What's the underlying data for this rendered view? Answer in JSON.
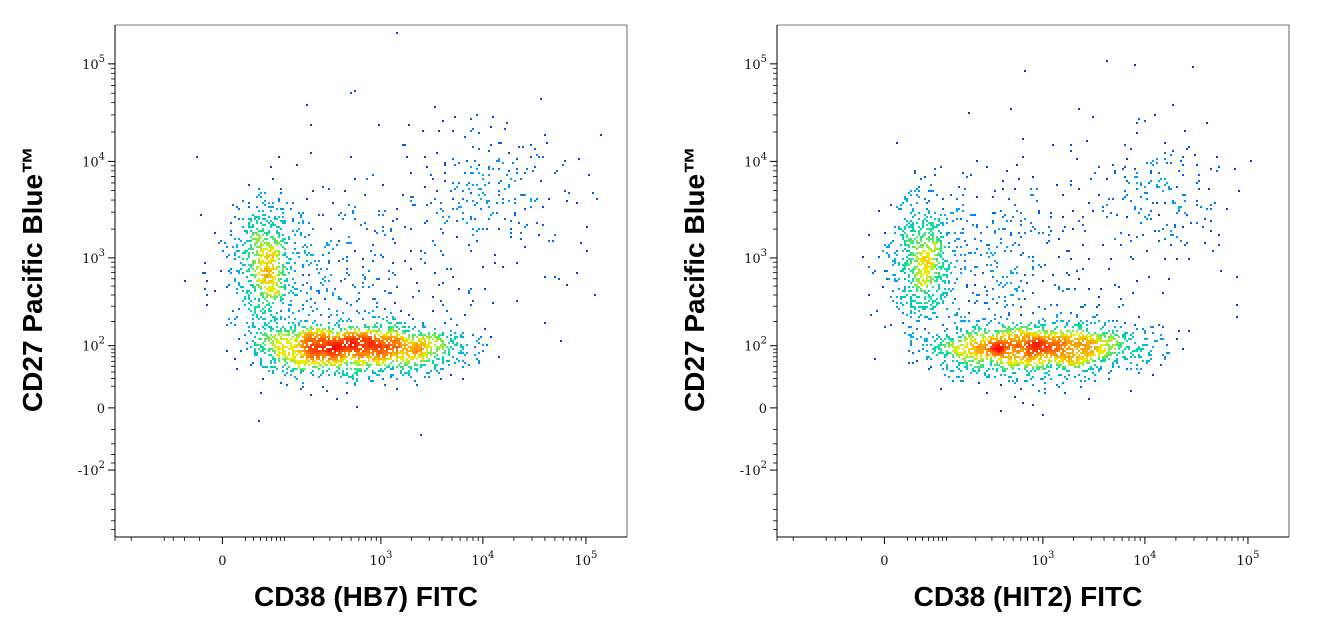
{
  "chart_data": [
    {
      "type": "scatter",
      "subtype": "flow-cytometry-density-dot-plot",
      "xlabel": "CD38 (HB7) FITC",
      "ylabel": "CD27 Pacific Blue™",
      "x_scale": "biexponential",
      "y_scale": "biexponential",
      "xlim": [
        -300,
        250000
      ],
      "ylim": [
        -600,
        250000
      ],
      "x_ticks": [
        {
          "value": 0,
          "label": "0"
        },
        {
          "value": 1000,
          "label": "10",
          "exp": "3"
        },
        {
          "value": 10000,
          "label": "10",
          "exp": "4"
        },
        {
          "value": 100000,
          "label": "10",
          "exp": "5"
        }
      ],
      "y_ticks": [
        {
          "value": -100,
          "label": "-10",
          "exp": "2"
        },
        {
          "value": 0,
          "label": "0"
        },
        {
          "value": 100,
          "label": "10",
          "exp": "2"
        },
        {
          "value": 1000,
          "label": "10",
          "exp": "3"
        },
        {
          "value": 10000,
          "label": "10",
          "exp": "4"
        },
        {
          "value": 100000,
          "label": "10",
          "exp": "5"
        }
      ],
      "colormap": [
        "#0000c8",
        "#00a0ff",
        "#00e0a0",
        "#f0f000",
        "#ff8000",
        "#ff0000"
      ],
      "populations": [
        {
          "x": 320,
          "y": 90,
          "sx": 0.45,
          "sy": 0.13,
          "n": 1400
        },
        {
          "x": 1500,
          "y": 95,
          "sx": 0.35,
          "sy": 0.13,
          "n": 700
        },
        {
          "x": 45,
          "y": 800,
          "sx": 0.18,
          "sy": 0.35,
          "n": 650
        },
        {
          "x": 200,
          "y": 600,
          "sx": 0.55,
          "sy": 0.45,
          "n": 350
        },
        {
          "x": 12000,
          "y": 5000,
          "sx": 0.35,
          "sy": 0.3,
          "n": 180
        },
        {
          "x": 3000,
          "y": 2000,
          "sx": 0.7,
          "sy": 0.7,
          "n": 150
        }
      ],
      "grid": false,
      "legend": "none"
    },
    {
      "type": "scatter",
      "subtype": "flow-cytometry-density-dot-plot",
      "xlabel": "CD38 (HIT2) FITC",
      "ylabel": "CD27 Pacific Blue™",
      "x_scale": "biexponential",
      "y_scale": "biexponential",
      "xlim": [
        -300,
        250000
      ],
      "ylim": [
        -600,
        250000
      ],
      "x_ticks": [
        {
          "value": 0,
          "label": "0"
        },
        {
          "value": 1000,
          "label": "10",
          "exp": "3"
        },
        {
          "value": 10000,
          "label": "10",
          "exp": "4"
        },
        {
          "value": 100000,
          "label": "10",
          "exp": "5"
        }
      ],
      "y_ticks": [
        {
          "value": -100,
          "label": "-10",
          "exp": "2"
        },
        {
          "value": 0,
          "label": "0"
        },
        {
          "value": 100,
          "label": "10",
          "exp": "2"
        },
        {
          "value": 1000,
          "label": "10",
          "exp": "3"
        },
        {
          "value": 10000,
          "label": "10",
          "exp": "4"
        },
        {
          "value": 100000,
          "label": "10",
          "exp": "5"
        }
      ],
      "colormap": [
        "#0000c8",
        "#00a0ff",
        "#00e0a0",
        "#f0f000",
        "#ff8000",
        "#ff0000"
      ],
      "populations": [
        {
          "x": 500,
          "y": 90,
          "sx": 0.45,
          "sy": 0.13,
          "n": 1400
        },
        {
          "x": 2500,
          "y": 95,
          "sx": 0.35,
          "sy": 0.13,
          "n": 700
        },
        {
          "x": 40,
          "y": 900,
          "sx": 0.18,
          "sy": 0.35,
          "n": 650
        },
        {
          "x": 250,
          "y": 700,
          "sx": 0.55,
          "sy": 0.45,
          "n": 350
        },
        {
          "x": 15000,
          "y": 5000,
          "sx": 0.35,
          "sy": 0.3,
          "n": 150
        },
        {
          "x": 3000,
          "y": 2000,
          "sx": 0.7,
          "sy": 0.7,
          "n": 130
        }
      ],
      "grid": false,
      "legend": "none"
    }
  ]
}
